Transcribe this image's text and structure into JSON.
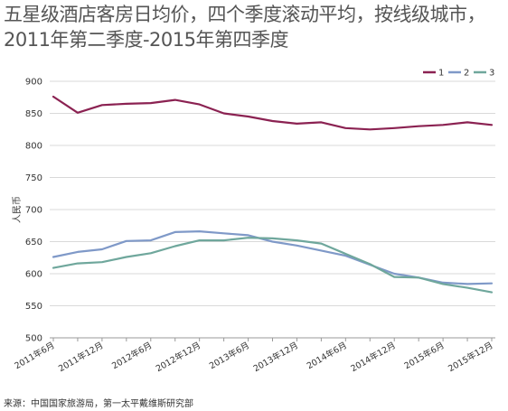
{
  "page": {
    "title": "五星级酒店客房日均价，四个季度滚动平均，按线级城市，2011年第二季度-2015年第四季度",
    "source": "来源：中国国家旅游局，第一太平戴维斯研究部"
  },
  "chart_data": {
    "type": "line",
    "title": "五星级酒店客房日均价，四个季度滚动平均，按线级城市，2011年第二季度-2015年第四季度",
    "ylabel": "人民币",
    "xlabel": "",
    "ylim": [
      500,
      900
    ],
    "yticks": [
      500,
      550,
      600,
      650,
      700,
      750,
      800,
      850,
      900
    ],
    "grid": true,
    "legend_position": "top-right",
    "x": [
      "2011年6月",
      "2011年9月",
      "2011年12月",
      "2012年3月",
      "2012年6月",
      "2012年9月",
      "2012年12月",
      "2013年3月",
      "2013年6月",
      "2013年9月",
      "2013年12月",
      "2014年3月",
      "2014年6月",
      "2014年9月",
      "2014年12月",
      "2015年3月",
      "2015年6月",
      "2015年9月",
      "2015年12月"
    ],
    "x_tick_labels": [
      "2011年6月",
      "2011年12月",
      "2012年6月",
      "2012年12月",
      "2013年6月",
      "2013年12月",
      "2014年6月",
      "2014年12月",
      "2015年6月",
      "2015年12月"
    ],
    "series": [
      {
        "name": "1",
        "color": "#8b2252",
        "values": [
          876,
          851,
          863,
          865,
          866,
          871,
          864,
          850,
          845,
          838,
          834,
          836,
          827,
          825,
          827,
          830,
          832,
          836,
          832
        ]
      },
      {
        "name": "2",
        "color": "#7f99c8",
        "values": [
          626,
          634,
          638,
          651,
          652,
          665,
          666,
          663,
          660,
          650,
          644,
          636,
          628,
          614,
          600,
          594,
          586,
          584,
          585
        ]
      },
      {
        "name": "3",
        "color": "#6fa79c",
        "values": [
          609,
          616,
          618,
          626,
          632,
          643,
          652,
          652,
          656,
          655,
          652,
          647,
          631,
          615,
          595,
          594,
          584,
          578,
          571
        ]
      }
    ]
  }
}
